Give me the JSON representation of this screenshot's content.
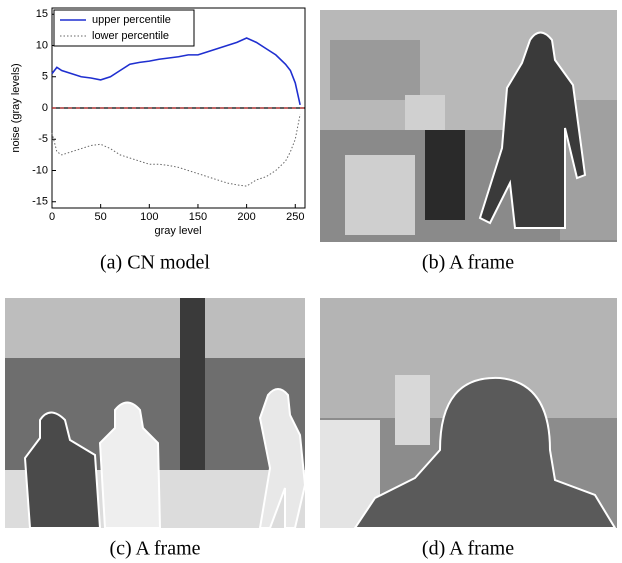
{
  "chart_data": {
    "type": "line",
    "xlabel": "gray level",
    "ylabel": "noise (gray levels)",
    "x": [
      0,
      5,
      10,
      20,
      30,
      40,
      50,
      60,
      70,
      80,
      90,
      100,
      110,
      120,
      130,
      140,
      150,
      160,
      170,
      180,
      190,
      200,
      210,
      220,
      230,
      240,
      245,
      250,
      255
    ],
    "series": [
      {
        "name": "upper percentile",
        "color": "#1f2fd0",
        "dash": false,
        "values": [
          5.5,
          6.5,
          6,
          5.5,
          5,
          4.8,
          4.5,
          5,
          6,
          7,
          7.3,
          7.5,
          7.8,
          8,
          8.2,
          8.5,
          8.5,
          9,
          9.5,
          10,
          10.5,
          11.2,
          10.5,
          9.5,
          8.5,
          7,
          6,
          4,
          0.5
        ]
      },
      {
        "name": "lower percentile",
        "color": "#666666",
        "dash": true,
        "values": [
          -4,
          -7,
          -7.5,
          -7,
          -6.5,
          -6,
          -5.8,
          -6.5,
          -7.5,
          -8,
          -8.5,
          -9,
          -9,
          -9.2,
          -9.5,
          -10,
          -10.5,
          -11,
          -11.5,
          -12,
          -12.3,
          -12.5,
          -11.5,
          -11,
          -10,
          -8.5,
          -7,
          -5,
          -1
        ]
      }
    ],
    "xlim": [
      0,
      260
    ],
    "xticks": [
      0,
      50,
      100,
      150,
      200,
      250
    ],
    "ylim": [
      -16,
      16
    ],
    "yticks": [
      -15,
      -10,
      -5,
      0,
      5,
      10,
      15
    ],
    "legend": "upper-left"
  },
  "captions": [
    "(a) CN model",
    "(b) A frame",
    "(c) A frame",
    "(d) A frame"
  ]
}
